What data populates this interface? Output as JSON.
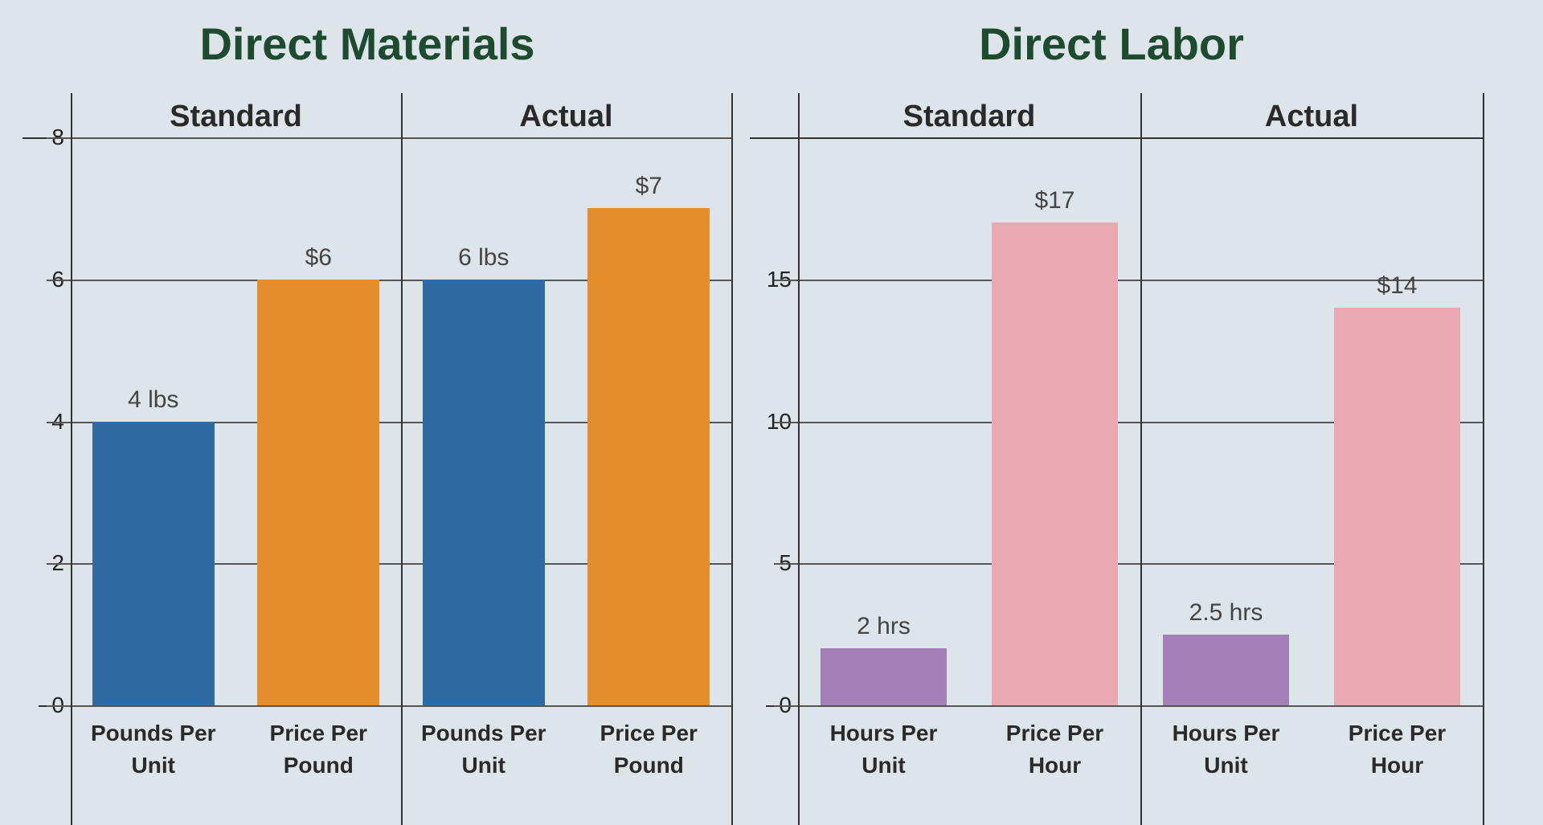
{
  "chart_data": [
    {
      "type": "bar",
      "title": "Direct Materials",
      "groups": [
        {
          "name": "Standard",
          "categories": [
            "Pounds Per Unit",
            "Price Per Pound"
          ],
          "values": [
            4,
            6
          ],
          "value_labels": [
            "4 lbs",
            "$6"
          ]
        },
        {
          "name": "Actual",
          "categories": [
            "Pounds Per Unit",
            "Price Per Pound"
          ],
          "values": [
            6,
            7
          ],
          "value_labels": [
            "6 lbs",
            "$7"
          ]
        }
      ],
      "colors": [
        "#2f6aa3",
        "#e58e2e"
      ],
      "ylim": [
        0,
        8
      ],
      "yticks": [
        0,
        2,
        4,
        6,
        8
      ],
      "grid": true
    },
    {
      "type": "bar",
      "title": "Direct Labor",
      "groups": [
        {
          "name": "Standard",
          "categories": [
            "Hours Per Unit",
            "Price Per Hour"
          ],
          "values": [
            2,
            17
          ],
          "value_labels": [
            "2 hrs",
            "$17"
          ]
        },
        {
          "name": "Actual",
          "categories": [
            "Hours Per Unit",
            "Price Per Hour"
          ],
          "values": [
            2.5,
            14
          ],
          "value_labels": [
            "2.5 hrs",
            "$14"
          ]
        }
      ],
      "colors": [
        "#a27fb4",
        "#e9a9b2"
      ],
      "ylim": [
        0,
        20
      ],
      "yticks": [
        0,
        5,
        10,
        15
      ],
      "grid": true
    }
  ]
}
